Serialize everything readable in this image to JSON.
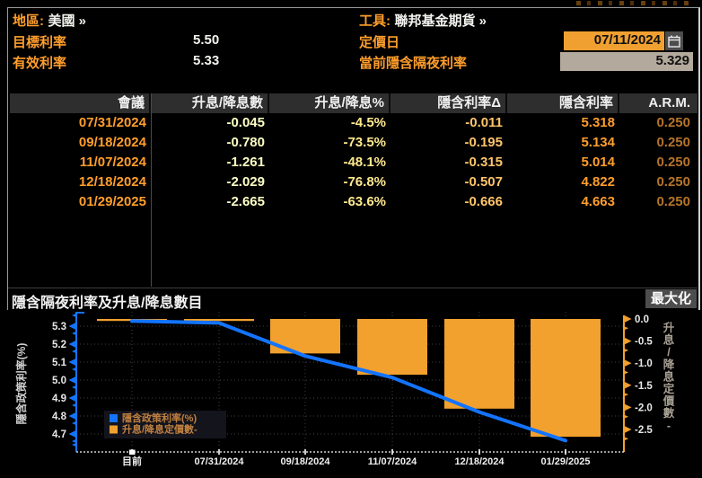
{
  "header": {
    "region_label": "地區:",
    "region_value": "美國 »",
    "tool_label": "工具:",
    "tool_value": "聯邦基金期貨 »",
    "target_rate_label": "目標利率",
    "target_rate_value": "5.50",
    "effective_rate_label": "有效利率",
    "effective_rate_value": "5.33",
    "pricing_date_label": "定價日",
    "pricing_date_value": "07/11/2024",
    "implied_overnight_label": "當前隱含隔夜利率",
    "implied_overnight_value": "5.329"
  },
  "table": {
    "columns": [
      "會議",
      "升息/降息數",
      "升息/降息%",
      "隱含利率Δ",
      "隱含利率",
      "A.R.M."
    ],
    "rows": [
      [
        "07/31/2024",
        "-0.045",
        "-4.5%",
        "-0.011",
        "5.318",
        "0.250"
      ],
      [
        "09/18/2024",
        "-0.780",
        "-73.5%",
        "-0.195",
        "5.134",
        "0.250"
      ],
      [
        "11/07/2024",
        "-1.261",
        "-48.1%",
        "-0.315",
        "5.014",
        "0.250"
      ],
      [
        "12/18/2024",
        "-2.029",
        "-76.8%",
        "-0.507",
        "4.822",
        "0.250"
      ],
      [
        "01/29/2025",
        "-2.665",
        "-63.6%",
        "-0.666",
        "4.663",
        "0.250"
      ]
    ]
  },
  "chart_section": {
    "title": "隱含隔夜利率及升息/降息數目",
    "maximize_label": "最大化"
  },
  "chart_data": {
    "type": "combo",
    "categories": [
      "目前",
      "07/31/2024",
      "09/18/2024",
      "11/07/2024",
      "12/18/2024",
      "01/29/2025"
    ],
    "series": [
      {
        "name": "隱含政策利率(%)",
        "type": "line",
        "axis": "left",
        "color": "#1374ff",
        "values": [
          5.329,
          5.318,
          5.134,
          5.014,
          4.822,
          4.663
        ]
      },
      {
        "name": "升息/降息定價數-",
        "type": "bar",
        "axis": "right",
        "color": "#f2a02e",
        "values": [
          0.0,
          -0.045,
          -0.78,
          -1.261,
          -2.029,
          -2.665
        ]
      }
    ],
    "left_axis": {
      "label": "隱含政策利率(%)",
      "ticks": [
        5.3,
        5.2,
        5.1,
        5.0,
        4.9,
        4.8,
        4.7
      ],
      "color": "#1374ff"
    },
    "right_axis": {
      "label": "升息/降息定價數-",
      "ticks": [
        0.0,
        -0.5,
        -1.0,
        -1.5,
        -2.0,
        -2.5
      ],
      "color": "#f2a02e"
    },
    "grid": true,
    "legend_position": "bottom-left",
    "legend": [
      "隱含政策利率(%)",
      "升息/降息定價數-"
    ]
  },
  "colors": {
    "accent_orange": "#ff9e2c",
    "field_orange": "#f0a030",
    "field_tan": "#b3a99c",
    "line_blue": "#1374ff",
    "bar_orange": "#f2a02e",
    "legend_text": "#c08040"
  }
}
